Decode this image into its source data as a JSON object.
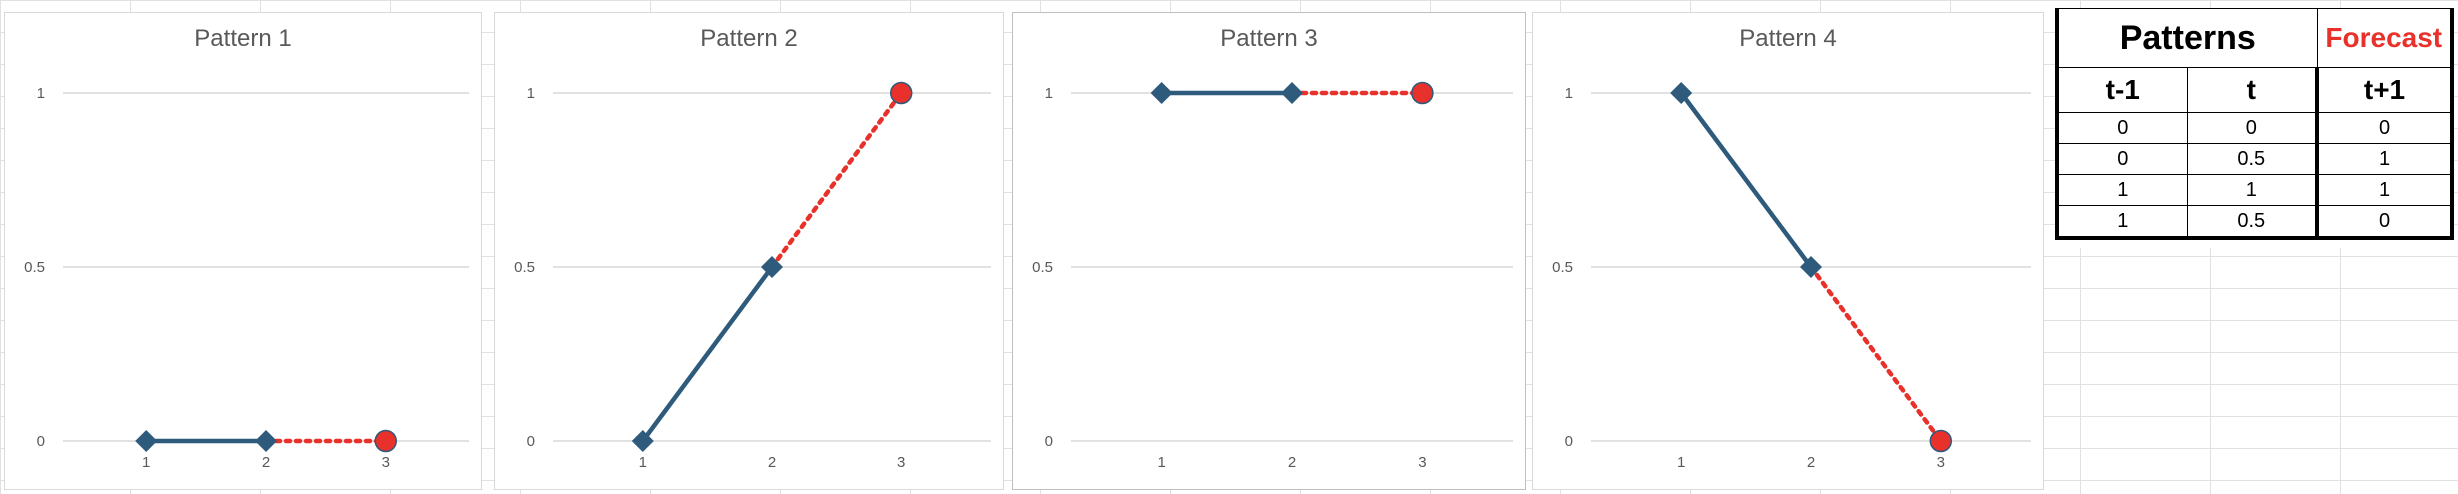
{
  "colors": {
    "series": "#2e5a7c",
    "forecast": "#e8312a",
    "grid": "#d9d9d9",
    "axis_text": "#595959"
  },
  "chart_data": [
    {
      "type": "line",
      "title": "Pattern 1",
      "x": [
        1,
        2,
        3
      ],
      "y": [
        0,
        0,
        0
      ],
      "forecast_from": 2,
      "ylim": [
        0,
        1
      ],
      "yticks": [
        "0",
        "0.5",
        "1"
      ],
      "xticks": [
        "1",
        "2",
        "3"
      ],
      "grid": true,
      "legend": "none"
    },
    {
      "type": "line",
      "title": "Pattern 2",
      "x": [
        1,
        2,
        3
      ],
      "y": [
        0,
        0.5,
        1
      ],
      "forecast_from": 2,
      "ylim": [
        0,
        1
      ],
      "yticks": [
        "0",
        "0.5",
        "1"
      ],
      "xticks": [
        "1",
        "2",
        "3"
      ],
      "grid": true,
      "legend": "none"
    },
    {
      "type": "line",
      "title": "Pattern 3",
      "x": [
        1,
        2,
        3
      ],
      "y": [
        1,
        1,
        1
      ],
      "forecast_from": 2,
      "ylim": [
        0,
        1
      ],
      "yticks": [
        "0",
        "0.5",
        "1"
      ],
      "xticks": [
        "1",
        "2",
        "3"
      ],
      "grid": true,
      "legend": "none"
    },
    {
      "type": "line",
      "title": "Pattern 4",
      "x": [
        1,
        2,
        3
      ],
      "y": [
        1,
        0.5,
        0
      ],
      "forecast_from": 2,
      "ylim": [
        0,
        1
      ],
      "yticks": [
        "0",
        "0.5",
        "1"
      ],
      "xticks": [
        "1",
        "2",
        "3"
      ],
      "grid": true,
      "legend": "none"
    }
  ],
  "table": {
    "title": "Patterns",
    "forecast_title": "Forecast",
    "columns": [
      "t-1",
      "t",
      "t+1"
    ],
    "rows": [
      [
        "0",
        "0",
        "0"
      ],
      [
        "0",
        "0.5",
        "1"
      ],
      [
        "1",
        "1",
        "1"
      ],
      [
        "1",
        "0.5",
        "0"
      ]
    ]
  }
}
